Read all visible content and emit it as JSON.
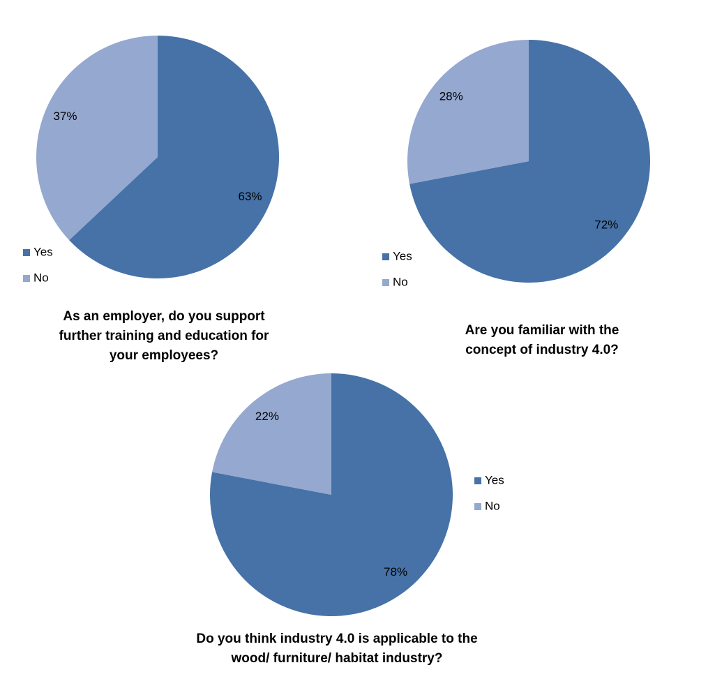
{
  "chart_data": [
    {
      "type": "pie",
      "title": "As an employer, do you support further training and education for your employees?",
      "categories": [
        "Yes",
        "No"
      ],
      "values": [
        63,
        37
      ],
      "value_labels": [
        "63%",
        "37%"
      ],
      "colors": [
        "#4672a7",
        "#95a8cf"
      ]
    },
    {
      "type": "pie",
      "title": "Are you familiar with the concept of industry 4.0?",
      "categories": [
        "Yes",
        "No"
      ],
      "values": [
        72,
        28
      ],
      "value_labels": [
        "72%",
        "28%"
      ],
      "colors": [
        "#4672a7",
        "#95a8cf"
      ]
    },
    {
      "type": "pie",
      "title": "Do you think industry 4.0 is applicable to the wood/ furniture/ habitat industry?",
      "categories": [
        "Yes",
        "No"
      ],
      "values": [
        78,
        22
      ],
      "value_labels": [
        "78%",
        "22%"
      ],
      "colors": [
        "#4672a7",
        "#95a8cf"
      ]
    }
  ]
}
